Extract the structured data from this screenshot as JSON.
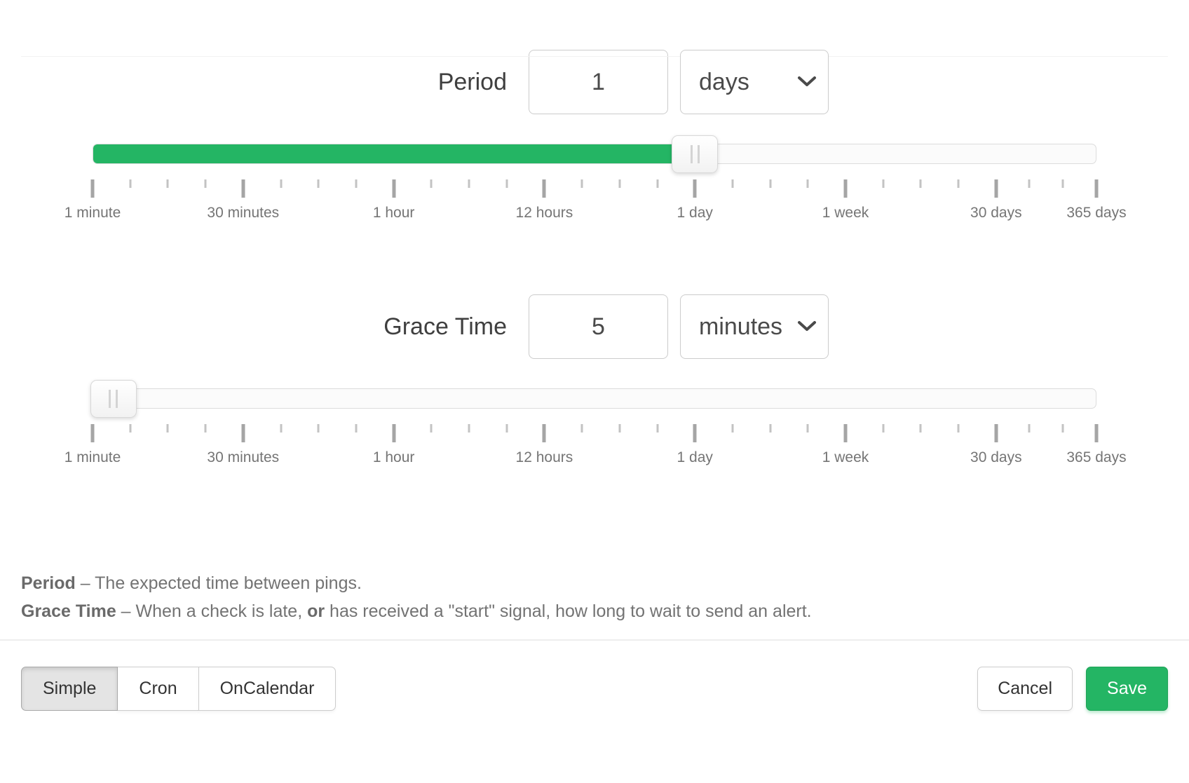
{
  "colors": {
    "green": "#24b564",
    "green_border": "#1fa257"
  },
  "period": {
    "label": "Period",
    "value": "1",
    "unit": "days",
    "slider_percent": 60
  },
  "grace_time": {
    "label": "Grace Time",
    "value": "5",
    "unit": "minutes",
    "slider_percent": 2
  },
  "time_scale": {
    "labels": [
      "1 minute",
      "30 minutes",
      "1 hour",
      "12 hours",
      "1 day",
      "1 week",
      "30 days",
      "365 days"
    ],
    "major_percents": [
      0,
      15,
      30,
      45,
      60,
      75,
      90,
      100
    ],
    "minor_percents": [
      3.75,
      7.5,
      11.25,
      18.75,
      22.5,
      26.25,
      33.75,
      37.5,
      41.25,
      48.75,
      52.5,
      56.25,
      63.75,
      67.5,
      71.25,
      78.75,
      82.5,
      86.25,
      93.33,
      96.67
    ]
  },
  "help": {
    "lines": [
      {
        "segments": [
          {
            "text": "Period",
            "bold": true
          },
          {
            "text": " – The expected time between pings.",
            "bold": false
          }
        ]
      },
      {
        "segments": [
          {
            "text": "Grace Time",
            "bold": true
          },
          {
            "text": " – When a check is late, ",
            "bold": false
          },
          {
            "text": "or",
            "bold": true
          },
          {
            "text": " has received a \"start\" signal, how long to wait to send an alert.",
            "bold": false
          }
        ]
      }
    ]
  },
  "footer": {
    "schedule_modes": [
      {
        "label": "Simple",
        "active": true
      },
      {
        "label": "Cron",
        "active": false
      },
      {
        "label": "OnCalendar",
        "active": false
      }
    ],
    "cancel_label": "Cancel",
    "save_label": "Save"
  }
}
